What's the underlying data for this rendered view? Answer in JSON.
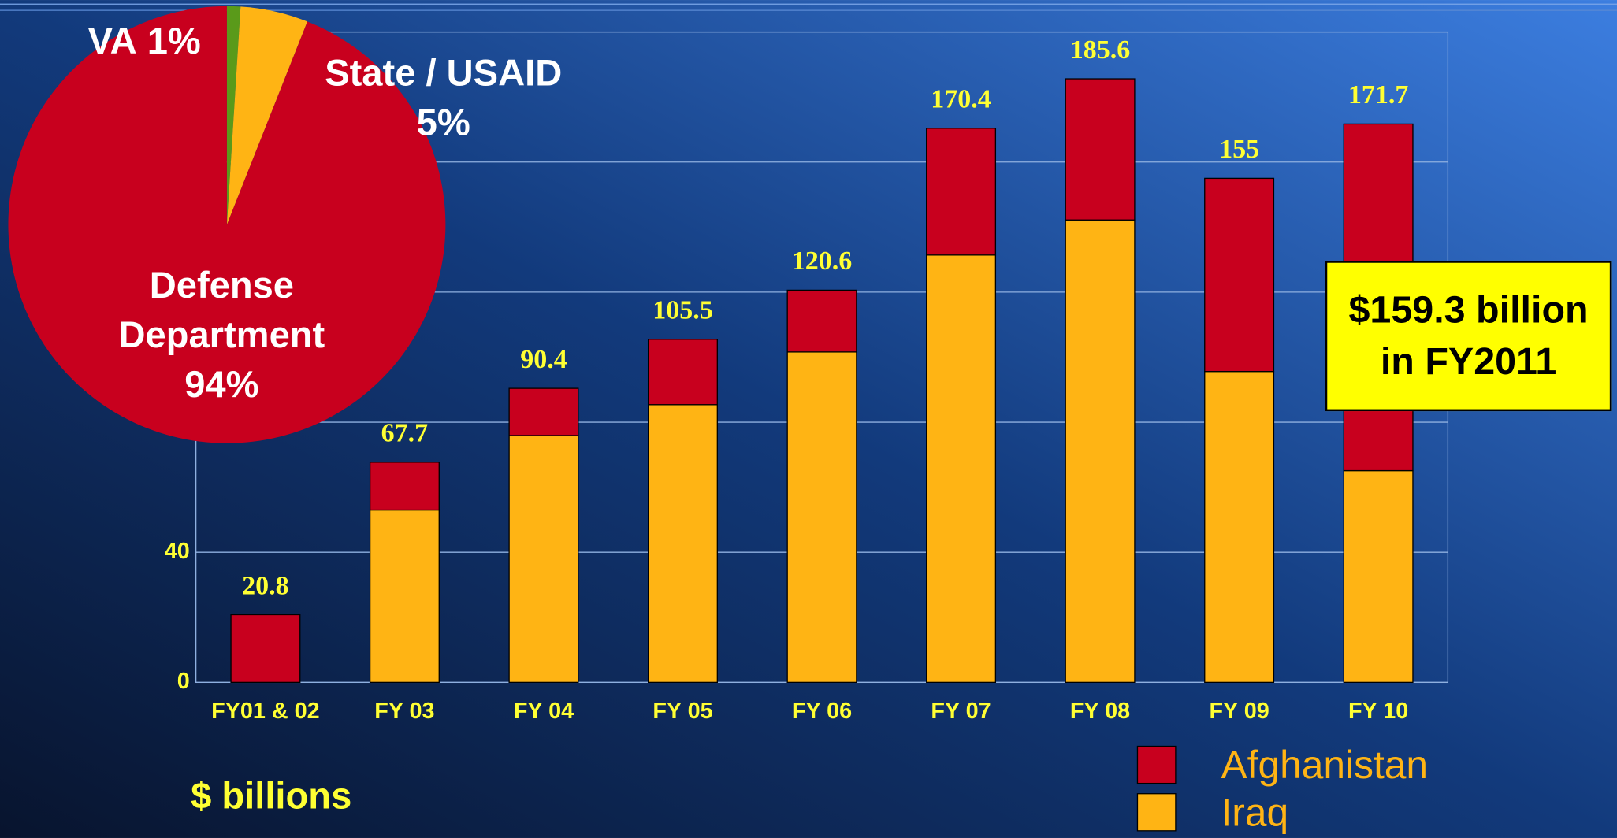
{
  "chart_data": {
    "type": "stacked_bar",
    "categories": [
      "FY01 & 02",
      "FY 03",
      "FY 04",
      "FY 05",
      "FY 06",
      "FY 07",
      "FY 08",
      "FY 09",
      "FY 10"
    ],
    "series": [
      {
        "name": "Afghanistan",
        "color": "#c8001e",
        "values": [
          20.8,
          14.7,
          14.5,
          20.1,
          19.0,
          39.0,
          43.4,
          59.4,
          106.6
        ]
      },
      {
        "name": "Iraq",
        "color": "#ffb414",
        "values": [
          0,
          53.0,
          75.9,
          85.4,
          101.6,
          131.4,
          142.2,
          95.6,
          65.1
        ]
      }
    ],
    "totals": [
      20.8,
      67.7,
      90.4,
      105.5,
      120.6,
      170.4,
      185.6,
      155,
      171.7
    ],
    "ylim": [
      0,
      200
    ],
    "yticks": [
      0,
      40,
      80,
      120,
      160,
      200
    ],
    "grid": true,
    "y_label": "$ billions",
    "annotation": "$159.3 billion in FY2011",
    "pie": {
      "type": "pie",
      "labels": [
        "VA",
        "State / USAID",
        "Defense Department"
      ],
      "values": [
        1,
        5,
        94
      ],
      "value_labels": [
        "1%",
        "5%",
        "94%"
      ],
      "colors": [
        "#5a9a1a",
        "#ffb414",
        "#c8001e"
      ]
    }
  }
}
